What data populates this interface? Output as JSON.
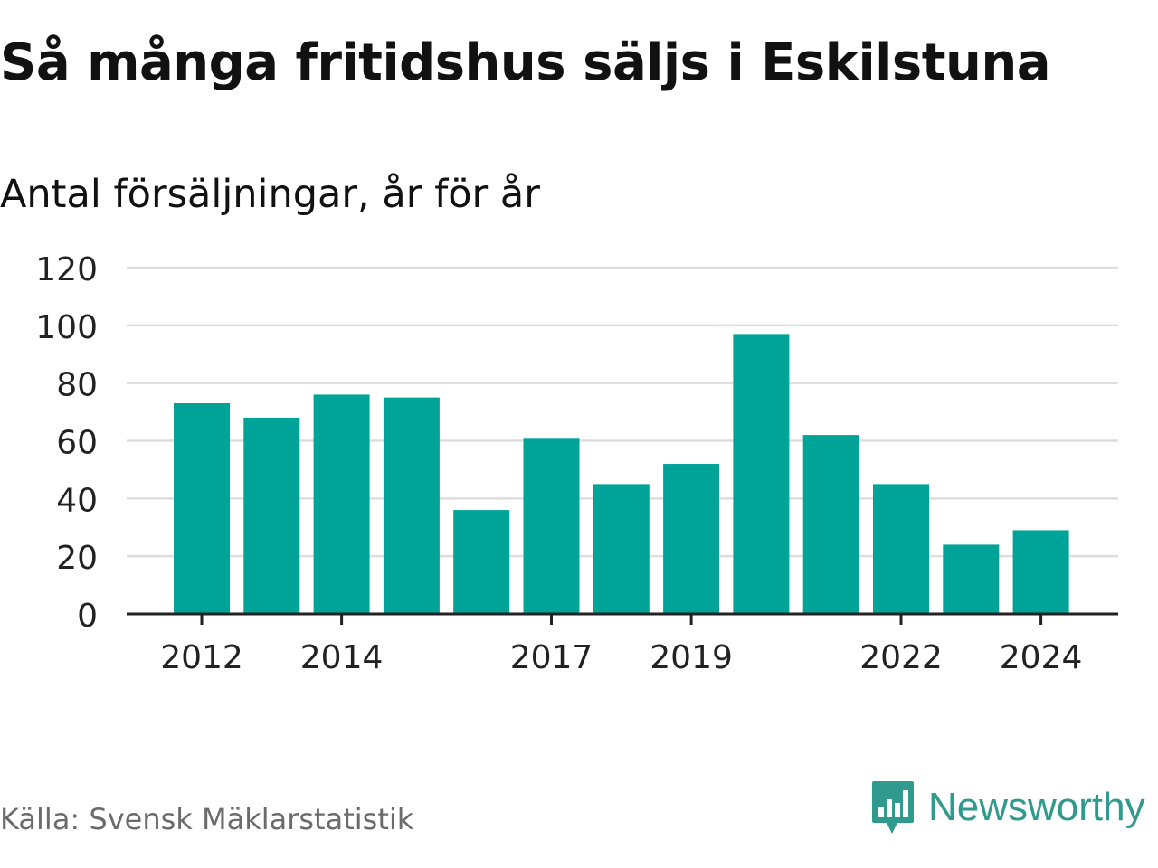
{
  "header": {
    "title": "Så många fritidshus säljs i Eskilstuna",
    "subtitle": "Antal försäljningar, år för år"
  },
  "footer": {
    "source": "Källa: Svensk Mäklarstatistik",
    "brand": "Newsworthy",
    "brand_icon": "bar-chart-speech-bubble-icon"
  },
  "colors": {
    "bar": "#00a398",
    "grid": "#dddddd",
    "axis": "#222222",
    "text": "#111111",
    "muted": "#6b6b6b",
    "brand": "#2f9a8d"
  },
  "chart_data": {
    "type": "bar",
    "title": "Så många fritidshus säljs i Eskilstuna",
    "subtitle": "Antal försäljningar, år för år",
    "xlabel": "",
    "ylabel": "",
    "categories": [
      2012,
      2013,
      2014,
      2015,
      2016,
      2017,
      2018,
      2019,
      2020,
      2021,
      2022,
      2023,
      2024
    ],
    "values": [
      73,
      68,
      76,
      75,
      36,
      61,
      45,
      52,
      97,
      62,
      45,
      24,
      29
    ],
    "x_tick_labels": [
      "2012",
      "2014",
      "2017",
      "2019",
      "2022",
      "2024"
    ],
    "y_ticks": [
      0,
      20,
      40,
      60,
      80,
      100,
      120
    ],
    "ylim": [
      0,
      120
    ],
    "grid": true,
    "legend": "none"
  }
}
